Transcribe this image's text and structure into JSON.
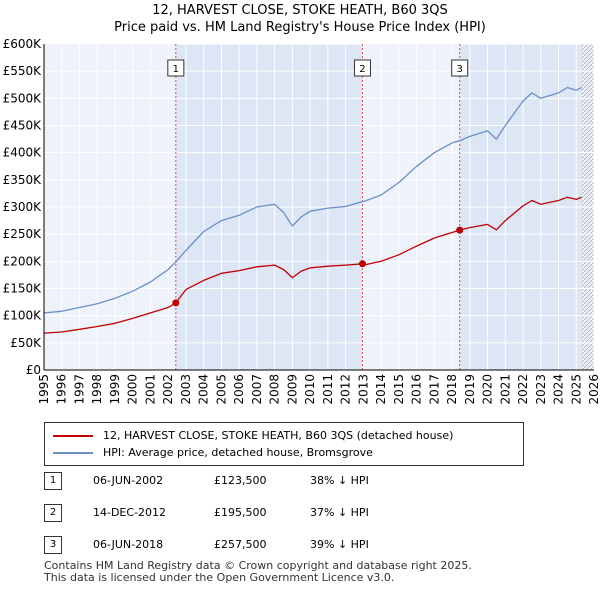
{
  "title": {
    "line1": "12, HARVEST CLOSE, STOKE HEATH, B60 3QS",
    "line2": "Price paid vs. HM Land Registry's House Price Index (HPI)"
  },
  "colors": {
    "property": "#c00000",
    "hpi": "#6a8fc9",
    "shade": "#dce6f5",
    "grid": "#ffffff",
    "plot_bg": "#eef2fa",
    "marker_line": "#e05050"
  },
  "legend": {
    "property_label": "12, HARVEST CLOSE, STOKE HEATH, B60 3QS (detached house)",
    "hpi_label": "HPI: Average price, detached house, Bromsgrove"
  },
  "sales": [
    {
      "num": "1",
      "date": "06-JUN-2002",
      "price": "£123,500",
      "hpi": "38% ↓ HPI"
    },
    {
      "num": "2",
      "date": "14-DEC-2012",
      "price": "£195,500",
      "hpi": "37% ↓ HPI"
    },
    {
      "num": "3",
      "date": "06-JUN-2018",
      "price": "£257,500",
      "hpi": "39% ↓ HPI"
    }
  ],
  "footer": {
    "line1": "Contains HM Land Registry data © Crown copyright and database right 2025.",
    "line2": "This data is licensed under the Open Government Licence v3.0."
  },
  "chart_data": {
    "type": "line",
    "xlim": [
      1995,
      2026
    ],
    "ylim": [
      0,
      600000
    ],
    "x_ticks": [
      1995,
      1996,
      1997,
      1998,
      1999,
      2000,
      2001,
      2002,
      2003,
      2004,
      2005,
      2006,
      2007,
      2008,
      2009,
      2010,
      2011,
      2012,
      2013,
      2014,
      2015,
      2016,
      2017,
      2018,
      2019,
      2020,
      2021,
      2022,
      2023,
      2024,
      2025,
      2026
    ],
    "y_ticks": [
      0,
      50000,
      100000,
      150000,
      200000,
      250000,
      300000,
      350000,
      400000,
      450000,
      500000,
      550000,
      600000
    ],
    "y_tick_labels": [
      "£0",
      "£50K",
      "£100K",
      "£150K",
      "£200K",
      "£250K",
      "£300K",
      "£350K",
      "£400K",
      "£450K",
      "£500K",
      "£550K",
      "£600K"
    ],
    "shaded_ranges": [
      [
        2002.43,
        2012.95
      ],
      [
        2018.43,
        2025.3
      ]
    ],
    "future_hatch_from": 2025.3,
    "sale_markers": [
      {
        "label": "1",
        "x": 2002.43,
        "y": 123500
      },
      {
        "label": "2",
        "x": 2012.95,
        "y": 195500
      },
      {
        "label": "3",
        "x": 2018.43,
        "y": 257500
      }
    ],
    "series": [
      {
        "name": "HPI: Average price, detached house, Bromsgrove",
        "x": [
          1995,
          1996,
          1997,
          1998,
          1999,
          2000,
          2001,
          2002,
          2002.43,
          2003,
          2004,
          2005,
          2006,
          2007,
          2008,
          2008.5,
          2009,
          2009.5,
          2010,
          2011,
          2012,
          2012.95,
          2013,
          2014,
          2015,
          2016,
          2017,
          2018,
          2018.43,
          2019,
          2020,
          2020.5,
          2021,
          2022,
          2022.5,
          2023,
          2024,
          2024.5,
          2025,
          2025.3
        ],
        "y": [
          105000,
          108000,
          115000,
          122000,
          132000,
          145000,
          162000,
          185000,
          199000,
          220000,
          255000,
          275000,
          285000,
          300000,
          305000,
          290000,
          265000,
          282000,
          292000,
          298000,
          301000,
          310000,
          310000,
          322000,
          345000,
          375000,
          400000,
          418000,
          422000,
          430000,
          440000,
          425000,
          450000,
          495000,
          510000,
          500000,
          510000,
          520000,
          515000,
          520000
        ]
      },
      {
        "name": "12, HARVEST CLOSE, STOKE HEATH, B60 3QS (detached house)",
        "x": [
          1995,
          1996,
          1997,
          1998,
          1999,
          2000,
          2001,
          2002,
          2002.43,
          2003,
          2004,
          2005,
          2006,
          2007,
          2008,
          2008.5,
          2009,
          2009.5,
          2010,
          2011,
          2012,
          2012.95,
          2013,
          2014,
          2015,
          2016,
          2017,
          2018,
          2018.43,
          2019,
          2020,
          2020.5,
          2021,
          2022,
          2022.5,
          2023,
          2024,
          2024.5,
          2025,
          2025.3
        ],
        "y": [
          68000,
          70000,
          75000,
          80000,
          86000,
          95000,
          105000,
          115000,
          123500,
          148000,
          165000,
          178000,
          183000,
          190000,
          193000,
          185000,
          170000,
          182000,
          188000,
          191000,
          193000,
          195500,
          193000,
          200000,
          212000,
          228000,
          243000,
          253000,
          257500,
          262000,
          268000,
          258000,
          275000,
          302000,
          312000,
          305000,
          312000,
          318000,
          314000,
          318000
        ]
      }
    ]
  }
}
